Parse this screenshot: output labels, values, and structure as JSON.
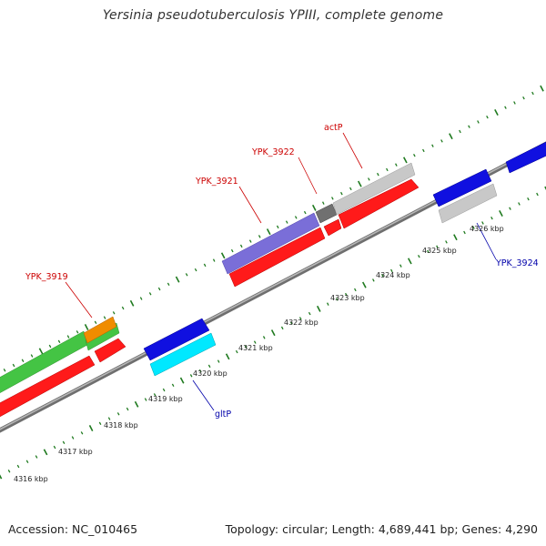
{
  "title": "Yersinia pseudotuberculosis YPIII, complete genome",
  "footer": {
    "accession": "Accession: NC_010465",
    "stats": "Topology: circular; Length: 4,689,441 bp; Genes: 4,290"
  },
  "colors": {
    "tick": "#1f7a1f",
    "backbone": "#8a8a8a",
    "red": "#ff1a1a",
    "green": "#44c444",
    "orange": "#f08c00",
    "blue": "#1010e0",
    "cyan": "#00e8ff",
    "purple": "#7a6ed8",
    "lightgray": "#c8c8c8",
    "darkgray": "#707070",
    "label_red": "#cc0000",
    "label_blue": "#0000aa"
  },
  "scale_labels": [
    "4316 kbp",
    "4317 kbp",
    "4318 kbp",
    "4319 kbp",
    "4320 kbp",
    "4321 kbp",
    "4322 kbp",
    "4323 kbp",
    "4324 kbp",
    "4325 kbp",
    "4326 kbp"
  ],
  "gene_labels": {
    "ypk3919": "YPK_3919",
    "ypk3921": "YPK_3921",
    "ypk3922": "YPK_3922",
    "actP": "actP",
    "gltP": "gltP",
    "ypk3924": "YPK_3924"
  }
}
